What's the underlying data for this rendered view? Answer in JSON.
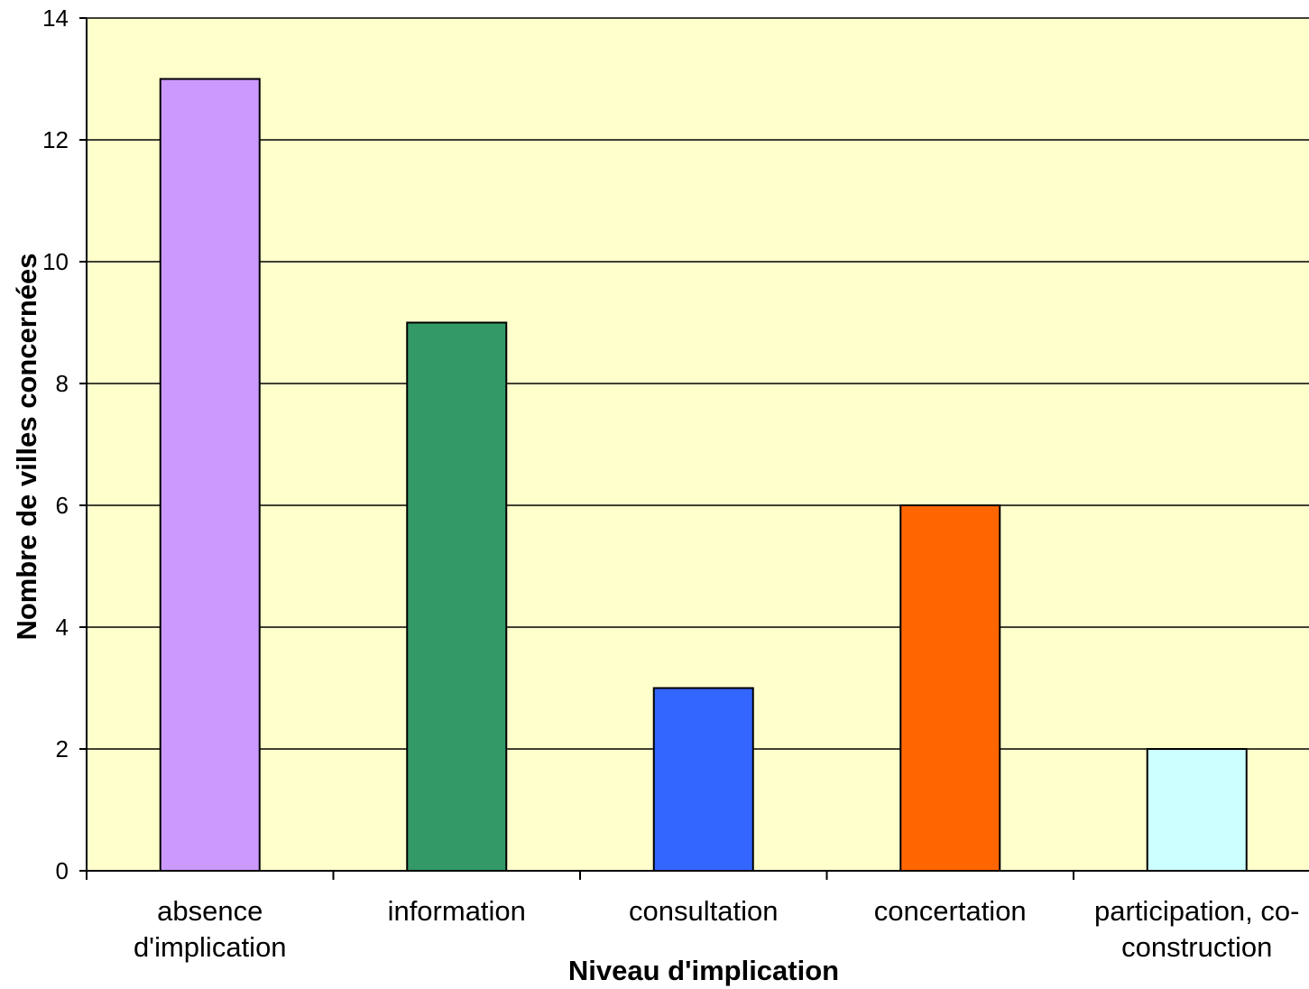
{
  "chart_data": {
    "type": "bar",
    "title": "",
    "xlabel": "Niveau d'implication",
    "ylabel": "Nombre de villes concernées",
    "categories": [
      [
        "absence",
        "d'implication"
      ],
      [
        "information"
      ],
      [
        "consultation"
      ],
      [
        "concertation"
      ],
      [
        "participation, co-",
        "construction"
      ]
    ],
    "values": [
      13,
      9,
      3,
      6,
      2
    ],
    "bar_colors": [
      "#cc99ff",
      "#339966",
      "#3366ff",
      "#ff6600",
      "#ccffff"
    ],
    "ylim": [
      0,
      14
    ],
    "yticks": [
      0,
      2,
      4,
      6,
      8,
      10,
      12,
      14
    ],
    "grid": true,
    "legend": "none",
    "plot_background": "#ffffcc"
  }
}
